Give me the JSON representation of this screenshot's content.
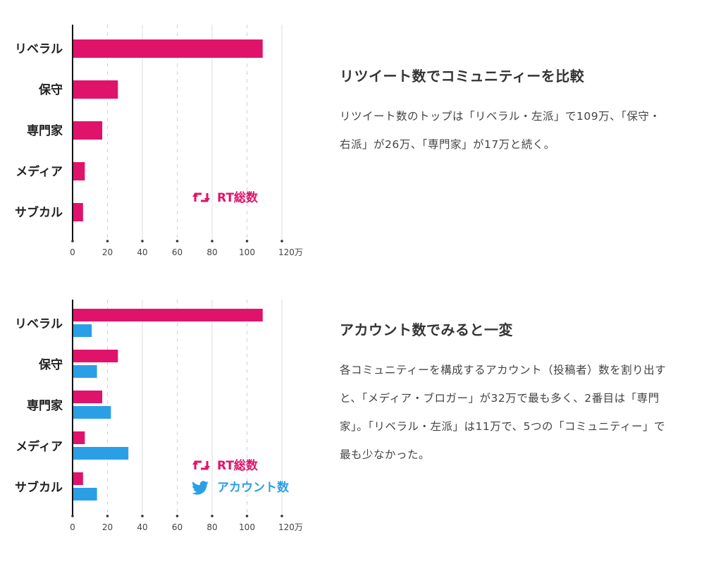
{
  "colors": {
    "rt": "#e0136b",
    "account": "#2b9fe6",
    "axis": "#111111",
    "grid": "#cccccc"
  },
  "chart_data": [
    {
      "type": "bar",
      "orientation": "horizontal",
      "categories": [
        "リベラル",
        "保守",
        "専門家",
        "メディア",
        "サブカル"
      ],
      "series": [
        {
          "name": "RT総数",
          "values": [
            109,
            26,
            17,
            7,
            6
          ]
        }
      ],
      "xticks": [
        "0",
        "20",
        "40",
        "60",
        "80",
        "100",
        "120万"
      ],
      "xlim": [
        0,
        120
      ],
      "legend": {
        "items": [
          {
            "label": "RT総数",
            "icon": "retweet-icon"
          }
        ],
        "position": "bottom-right"
      }
    },
    {
      "type": "bar",
      "orientation": "horizontal",
      "categories": [
        "リベラル",
        "保守",
        "専門家",
        "メディア",
        "サブカル"
      ],
      "series": [
        {
          "name": "RT総数",
          "values": [
            109,
            26,
            17,
            7,
            6
          ]
        },
        {
          "name": "アカウント数",
          "values": [
            11,
            14,
            22,
            32,
            14
          ]
        }
      ],
      "xticks": [
        "0",
        "20",
        "40",
        "60",
        "80",
        "100",
        "120万"
      ],
      "xlim": [
        0,
        120
      ],
      "legend": {
        "items": [
          {
            "label": "RT総数",
            "icon": "retweet-icon"
          },
          {
            "label": "アカウント数",
            "icon": "twitter-bird-icon"
          }
        ],
        "position": "bottom-right"
      }
    }
  ],
  "sections": [
    {
      "heading": "リツイート数でコミュニティーを比較",
      "body": "リツイート数のトップは「リベラル・左派」で109万、「保守・右派」が26万、「専門家」が17万と続く。"
    },
    {
      "heading": "アカウント数でみると一変",
      "body": "各コミュニティーを構成するアカウント（投稿者）数を割り出すと、「メディア・ブロガー」が32万で最も多く、2番目は「専門家」。「リベラル・左派」は11万で、5つの「コミュニティー」で最も少なかった。"
    }
  ]
}
